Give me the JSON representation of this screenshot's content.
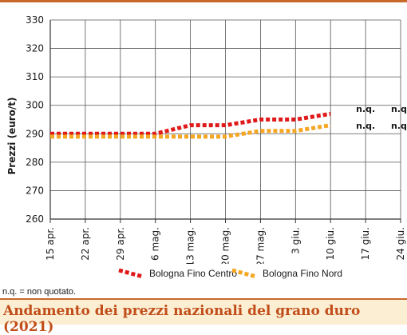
{
  "chart_data": {
    "type": "line",
    "title": "Andamento dei prezzi nazionali del grano duro (2021)",
    "ylabel": "Prezzi (euro/t)",
    "xlabel": "",
    "ylim": [
      260,
      330
    ],
    "yticks": [
      260,
      270,
      280,
      290,
      300,
      310,
      320,
      330
    ],
    "categories": [
      "15 apr.",
      "22 apr.",
      "29 apr.",
      "6 mag.",
      "13 mag.",
      "20 mag.",
      "27 mag.",
      "3 giu.",
      "10 giu.",
      "17 giu.",
      "24 giu."
    ],
    "series": [
      {
        "name": "Bologna Fino Centro",
        "color": "#e01a1a",
        "values": [
          290,
          290,
          290,
          290,
          293,
          293,
          295,
          295,
          297,
          null,
          null
        ],
        "trailing_labels": [
          "n.q.",
          "n.q."
        ]
      },
      {
        "name": "Bologna Fino Nord",
        "color": "#f5a623",
        "values": [
          289,
          289,
          289,
          289,
          289,
          289,
          291,
          291,
          293,
          null,
          null
        ],
        "trailing_labels": [
          "n.q.",
          "n.q."
        ]
      }
    ],
    "grid": true,
    "legend_position": "bottom"
  },
  "footnote": "n.q. = non quotato.",
  "header": {
    "title": "Andamento dei prezzi nazionali del grano duro (2021)"
  },
  "colors": {
    "accent": "#c8692a",
    "title_text": "#c14d19",
    "title_band": "#fbeed3"
  }
}
